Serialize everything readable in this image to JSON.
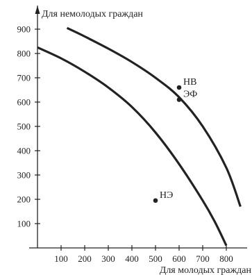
{
  "chart_data": {
    "type": "line",
    "title": "",
    "xlabel": "Для молодых граждан",
    "ylabel": "Для немолодых граждан",
    "xlim": [
      0,
      880
    ],
    "ylim": [
      0,
      980
    ],
    "x_ticks": [
      100,
      200,
      300,
      400,
      500,
      600,
      700,
      800
    ],
    "y_ticks": [
      100,
      200,
      300,
      400,
      500,
      600,
      700,
      800,
      900
    ],
    "grid": false,
    "legend": "none",
    "line_color": "#222222",
    "series": [
      {
        "x": [
          0,
          100,
          200,
          300,
          400,
          500,
          600,
          700,
          750,
          800
        ],
        "y": [
          825,
          780,
          725,
          660,
          580,
          475,
          345,
          195,
          110,
          10
        ]
      },
      {
        "x": [
          125,
          200,
          300,
          400,
          500,
          600,
          700,
          800,
          860
        ],
        "y": [
          905,
          870,
          820,
          765,
          700,
          620,
          500,
          330,
          170
        ]
      }
    ],
    "points": [
      {
        "label": "НВ",
        "x": 600,
        "y": 660
      },
      {
        "label": "ЭФ",
        "x": 600,
        "y": 610
      },
      {
        "label": "НЭ",
        "x": 500,
        "y": 195
      }
    ]
  }
}
